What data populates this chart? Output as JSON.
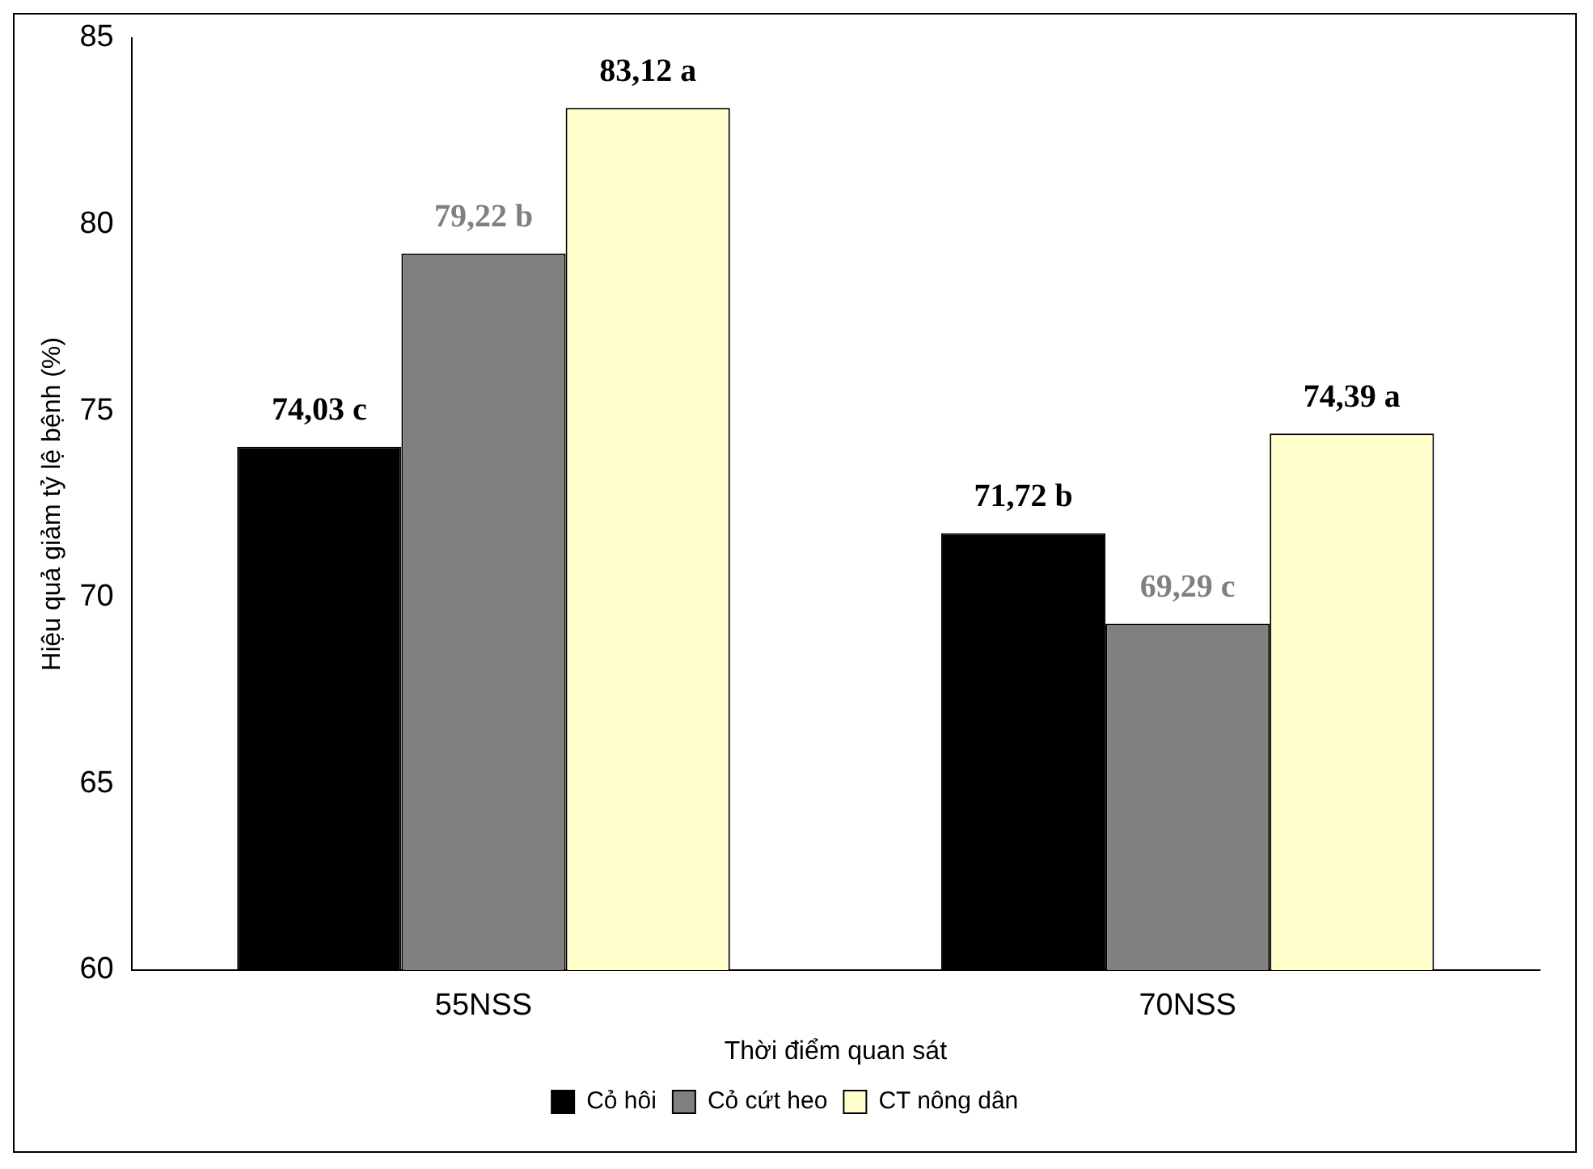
{
  "chart_data": {
    "type": "bar",
    "xlabel": "Thời điểm quan sát",
    "ylabel": "Hiệu quả giảm tỷ lệ bệnh (%)",
    "categories": [
      "55NSS",
      "70NSS"
    ],
    "series": [
      {
        "name": "Cỏ hôi",
        "color": "#000000",
        "values": [
          74.03,
          71.72
        ],
        "value_labels": [
          "74,03 c",
          "71,72 b"
        ]
      },
      {
        "name": "Cỏ cứt heo",
        "color": "#808080",
        "values": [
          79.22,
          69.29
        ],
        "value_labels": [
          "79,22 b",
          "69,29 c"
        ]
      },
      {
        "name": "CT nông dân",
        "color": "#ffffcc",
        "values": [
          83.12,
          74.39
        ],
        "value_labels": [
          "83,12 a",
          "74,39 a"
        ]
      }
    ],
    "ylim": [
      60,
      85
    ],
    "yticks": [
      60,
      65,
      70,
      75,
      80,
      85
    ],
    "grid": false,
    "legend": "bottom"
  }
}
